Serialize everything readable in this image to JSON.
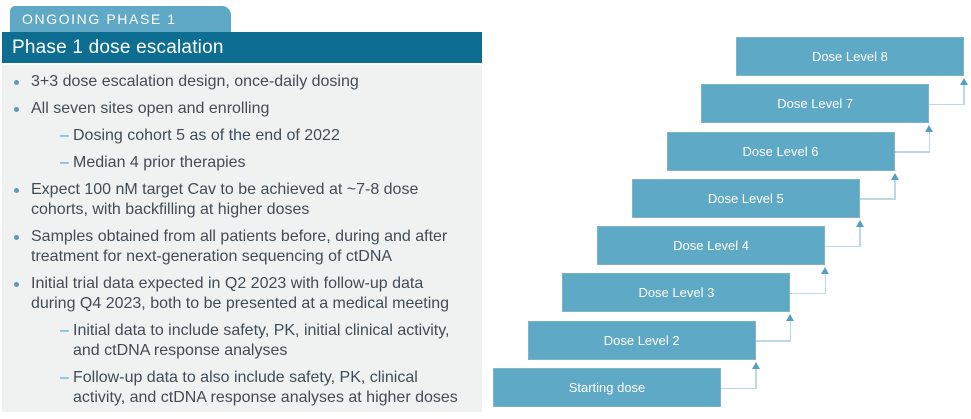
{
  "header": {
    "tab_label": "ONGOING PHASE 1",
    "title": "Phase 1 dose escalation"
  },
  "bullets": [
    {
      "level": 1,
      "text": "3+3 dose escalation design, once-daily dosing"
    },
    {
      "level": 1,
      "text": "All seven sites open and enrolling"
    },
    {
      "level": 2,
      "text": "Dosing cohort 5 as of the end of 2022"
    },
    {
      "level": 2,
      "text": "Median 4 prior therapies"
    },
    {
      "level": 1,
      "text": "Expect 100 nM target Cav to be achieved at ~7-8 dose\ncohorts, with backfilling at higher doses"
    },
    {
      "level": 1,
      "text": "Samples obtained from all patients before, during and after\ntreatment for next-generation sequencing of ctDNA"
    },
    {
      "level": 1,
      "text": "Initial trial data expected in Q2 2023 with follow-up data\nduring Q4 2023, both to be presented at a medical meeting"
    },
    {
      "level": 2,
      "text": "Initial data to include safety, PK, initial clinical activity,\nand ctDNA response analyses"
    },
    {
      "level": 2,
      "text": "Follow-up data to also include safety, PK, clinical\nactivity, and ctDNA response analyses at higher doses"
    }
  ],
  "diagram": {
    "boxes": [
      {
        "label": "Starting dose"
      },
      {
        "label": "Dose Level 2"
      },
      {
        "label": "Dose Level 3"
      },
      {
        "label": "Dose Level 4"
      },
      {
        "label": "Dose Level 5"
      },
      {
        "label": "Dose Level 6"
      },
      {
        "label": "Dose Level 7"
      },
      {
        "label": "Dose Level 8"
      }
    ]
  },
  "colors": {
    "accent_dark_teal": "#0d6e91",
    "accent_blue": "#5ea9c5",
    "panel_background": "#f0f1f1",
    "body_text": "#414d56",
    "bullet_marker": "#5e9ab8",
    "sub_bullet_dash": "#4da0c6",
    "arrow_line": "#bed8e6",
    "arrow_head": "#569fc4"
  }
}
